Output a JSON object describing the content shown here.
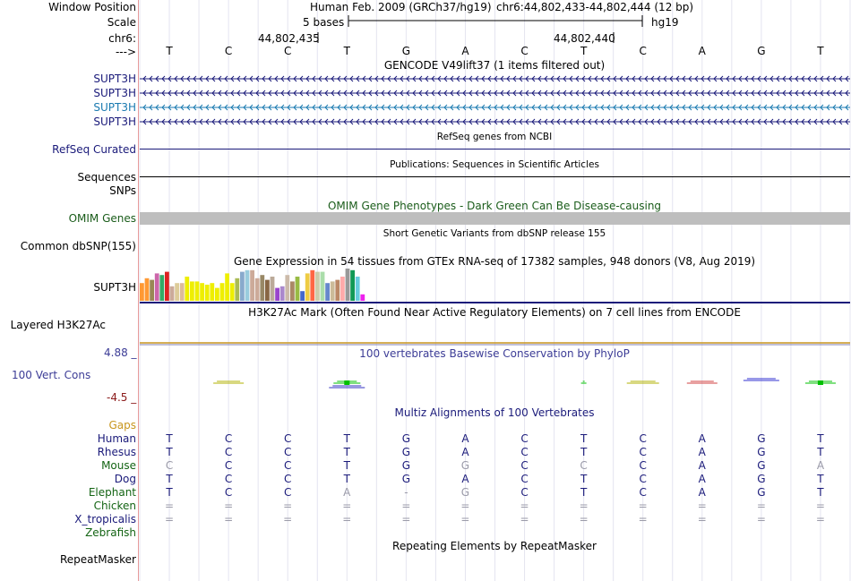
{
  "header": {
    "window_position_label": "Window Position",
    "assembly": "Human Feb. 2009 (GRCh37/hg19)",
    "position": "chr6:44,802,433-44,802,444 (12 bp)",
    "scale_label": "Scale",
    "scale_text": "5 bases",
    "db": "hg19",
    "chrom_label": "chr6:",
    "tick1": "44,802,435",
    "tick2": "44,802,440",
    "strand_label": "--->"
  },
  "sequence": [
    "T",
    "C",
    "C",
    "T",
    "G",
    "A",
    "C",
    "T",
    "C",
    "A",
    "G",
    "T"
  ],
  "tracks": {
    "gencode_title": "GENCODE V49lift37 (1 items filtered out)",
    "gene_rows": [
      {
        "label": "SUPT3H",
        "color": "#1a1a7a"
      },
      {
        "label": "SUPT3H",
        "color": "#1a1a7a"
      },
      {
        "label": "SUPT3H",
        "color": "#1a7ab0"
      },
      {
        "label": "SUPT3H",
        "color": "#1a1a7a"
      }
    ],
    "refseq_title": "RefSeq genes from NCBI",
    "refseq_label": "RefSeq Curated",
    "publications_title": "Publications: Sequences in Scientific Articles",
    "sequences_label": "Sequences",
    "snps_label": "SNPs",
    "omim_title": "OMIM Gene Phenotypes - Dark Green Can Be Disease-causing",
    "omim_label": "OMIM Genes",
    "dbsnp_title": "Short Genetic Variants from dbSNP release 155",
    "dbsnp_label": "Common dbSNP(155)",
    "gtex_title": "Gene Expression in 54 tissues from GTEx RNA-seq of 17382 samples, 948 donors (V8, Aug 2019)",
    "gtex_label": "SUPT3H",
    "h3k27_title": "H3K27Ac Mark (Often Found Near Active Regulatory Elements) on 7 cell lines from ENCODE",
    "h3k27_label": "Layered H3K27Ac",
    "phylop_title": "100 vertebrates Basewise Conservation by PhyloP",
    "phylop_label": "100 Vert. Cons",
    "phylop_max": "4.88 _",
    "phylop_min": "-4.5 _",
    "multiz_title": "Multiz Alignments of 100 Vertebrates",
    "gaps_label": "Gaps",
    "repeat_title": "Repeating Elements by RepeatMasker",
    "repeat_label": "RepeatMasker"
  },
  "colors": {
    "gene_dark": "#1a1a7a",
    "gene_light": "#1a7ab0",
    "omim_green": "#1a5c1a",
    "phylop_blue": "#3c3c96",
    "phylop_red": "#8b1a1a",
    "gaps_orange": "#c8961e",
    "species_green": "#146414"
  },
  "gtex_bars": [
    {
      "color": "#ff9933",
      "v": 0.55
    },
    {
      "color": "#ff9933",
      "v": 0.7
    },
    {
      "color": "#998855",
      "v": 0.65
    },
    {
      "color": "#cc66aa",
      "v": 0.85
    },
    {
      "color": "#33aa66",
      "v": 0.8
    },
    {
      "color": "#dd2222",
      "v": 0.9
    },
    {
      "color": "#ccaa99",
      "v": 0.45
    },
    {
      "color": "#ddcc99",
      "v": 0.55
    },
    {
      "color": "#ddbb99",
      "v": 0.55
    },
    {
      "color": "#eeee00",
      "v": 0.75
    },
    {
      "color": "#eeee00",
      "v": 0.6
    },
    {
      "color": "#eeee00",
      "v": 0.6
    },
    {
      "color": "#eeee00",
      "v": 0.55
    },
    {
      "color": "#eeee00",
      "v": 0.5
    },
    {
      "color": "#eeee00",
      "v": 0.55
    },
    {
      "color": "#eeee00",
      "v": 0.4
    },
    {
      "color": "#eeee00",
      "v": 0.55
    },
    {
      "color": "#eeee00",
      "v": 0.85
    },
    {
      "color": "#eeee00",
      "v": 0.55
    },
    {
      "color": "#aabb55",
      "v": 0.7
    },
    {
      "color": "#88aacc",
      "v": 0.9
    },
    {
      "color": "#99ccdd",
      "v": 0.95
    },
    {
      "color": "#ccaa99",
      "v": 0.95
    },
    {
      "color": "#ccaa99",
      "v": 0.7
    },
    {
      "color": "#998866",
      "v": 0.8
    },
    {
      "color": "#886644",
      "v": 0.65
    },
    {
      "color": "#bbaa99",
      "v": 0.75
    },
    {
      "color": "#9944cc",
      "v": 0.4
    },
    {
      "color": "#aa88cc",
      "v": 0.45
    },
    {
      "color": "#ccbbaa",
      "v": 0.8
    },
    {
      "color": "#aa8866",
      "v": 0.6
    },
    {
      "color": "#99bb44",
      "v": 0.75
    },
    {
      "color": "#4466cc",
      "v": 0.3
    },
    {
      "color": "#eecc44",
      "v": 0.85
    },
    {
      "color": "#ff6644",
      "v": 0.95
    },
    {
      "color": "#ccccaa",
      "v": 0.9
    },
    {
      "color": "#aaddaa",
      "v": 0.9
    },
    {
      "color": "#6688cc",
      "v": 0.55
    },
    {
      "color": "#ccbb99",
      "v": 0.6
    },
    {
      "color": "#bb8866",
      "v": 0.65
    },
    {
      "color": "#ffaaaa",
      "v": 0.75
    },
    {
      "color": "#999999",
      "v": 1.0
    },
    {
      "color": "#119955",
      "v": 0.95
    },
    {
      "color": "#66ccdd",
      "v": 0.75
    },
    {
      "color": "#ee22ee",
      "v": 0.2
    }
  ],
  "multiz": [
    {
      "species": "Human",
      "color": "#1a1a7a",
      "bases": [
        "T",
        "C",
        "C",
        "T",
        "G",
        "A",
        "C",
        "T",
        "C",
        "A",
        "G",
        "T"
      ],
      "dim": []
    },
    {
      "species": "Rhesus",
      "color": "#1a1a7a",
      "bases": [
        "T",
        "C",
        "C",
        "T",
        "G",
        "A",
        "C",
        "T",
        "C",
        "A",
        "G",
        "T"
      ],
      "dim": []
    },
    {
      "species": "Mouse",
      "color": "#146414",
      "bases": [
        "C",
        "C",
        "C",
        "T",
        "G",
        "G",
        "C",
        "C",
        "C",
        "A",
        "G",
        "A"
      ],
      "dim": [
        0,
        5,
        7,
        11
      ]
    },
    {
      "species": "Dog",
      "color": "#1a1a7a",
      "bases": [
        "T",
        "C",
        "C",
        "T",
        "G",
        "A",
        "C",
        "T",
        "C",
        "A",
        "G",
        "T"
      ],
      "dim": []
    },
    {
      "species": "Elephant",
      "color": "#146414",
      "bases": [
        "T",
        "C",
        "C",
        "A",
        "-",
        "G",
        "C",
        "T",
        "C",
        "A",
        "G",
        "T"
      ],
      "dim": [
        3,
        4,
        5
      ]
    },
    {
      "species": "Chicken",
      "color": "#146414",
      "bases": [
        "=",
        "=",
        "=",
        "=",
        "=",
        "=",
        "=",
        "=",
        "=",
        "=",
        "=",
        "="
      ],
      "dim": [
        0,
        1,
        2,
        3,
        4,
        5,
        6,
        7,
        8,
        9,
        10,
        11
      ]
    },
    {
      "species": "X_tropicalis",
      "color": "#1a1a7a",
      "bases": [
        "=",
        "=",
        "=",
        "=",
        "=",
        "=",
        "=",
        "=",
        "=",
        "=",
        "=",
        "="
      ],
      "dim": [
        0,
        1,
        2,
        3,
        4,
        5,
        6,
        7,
        8,
        9,
        10,
        11
      ]
    },
    {
      "species": "Zebrafish",
      "color": "#146414",
      "bases": [],
      "dim": []
    }
  ]
}
